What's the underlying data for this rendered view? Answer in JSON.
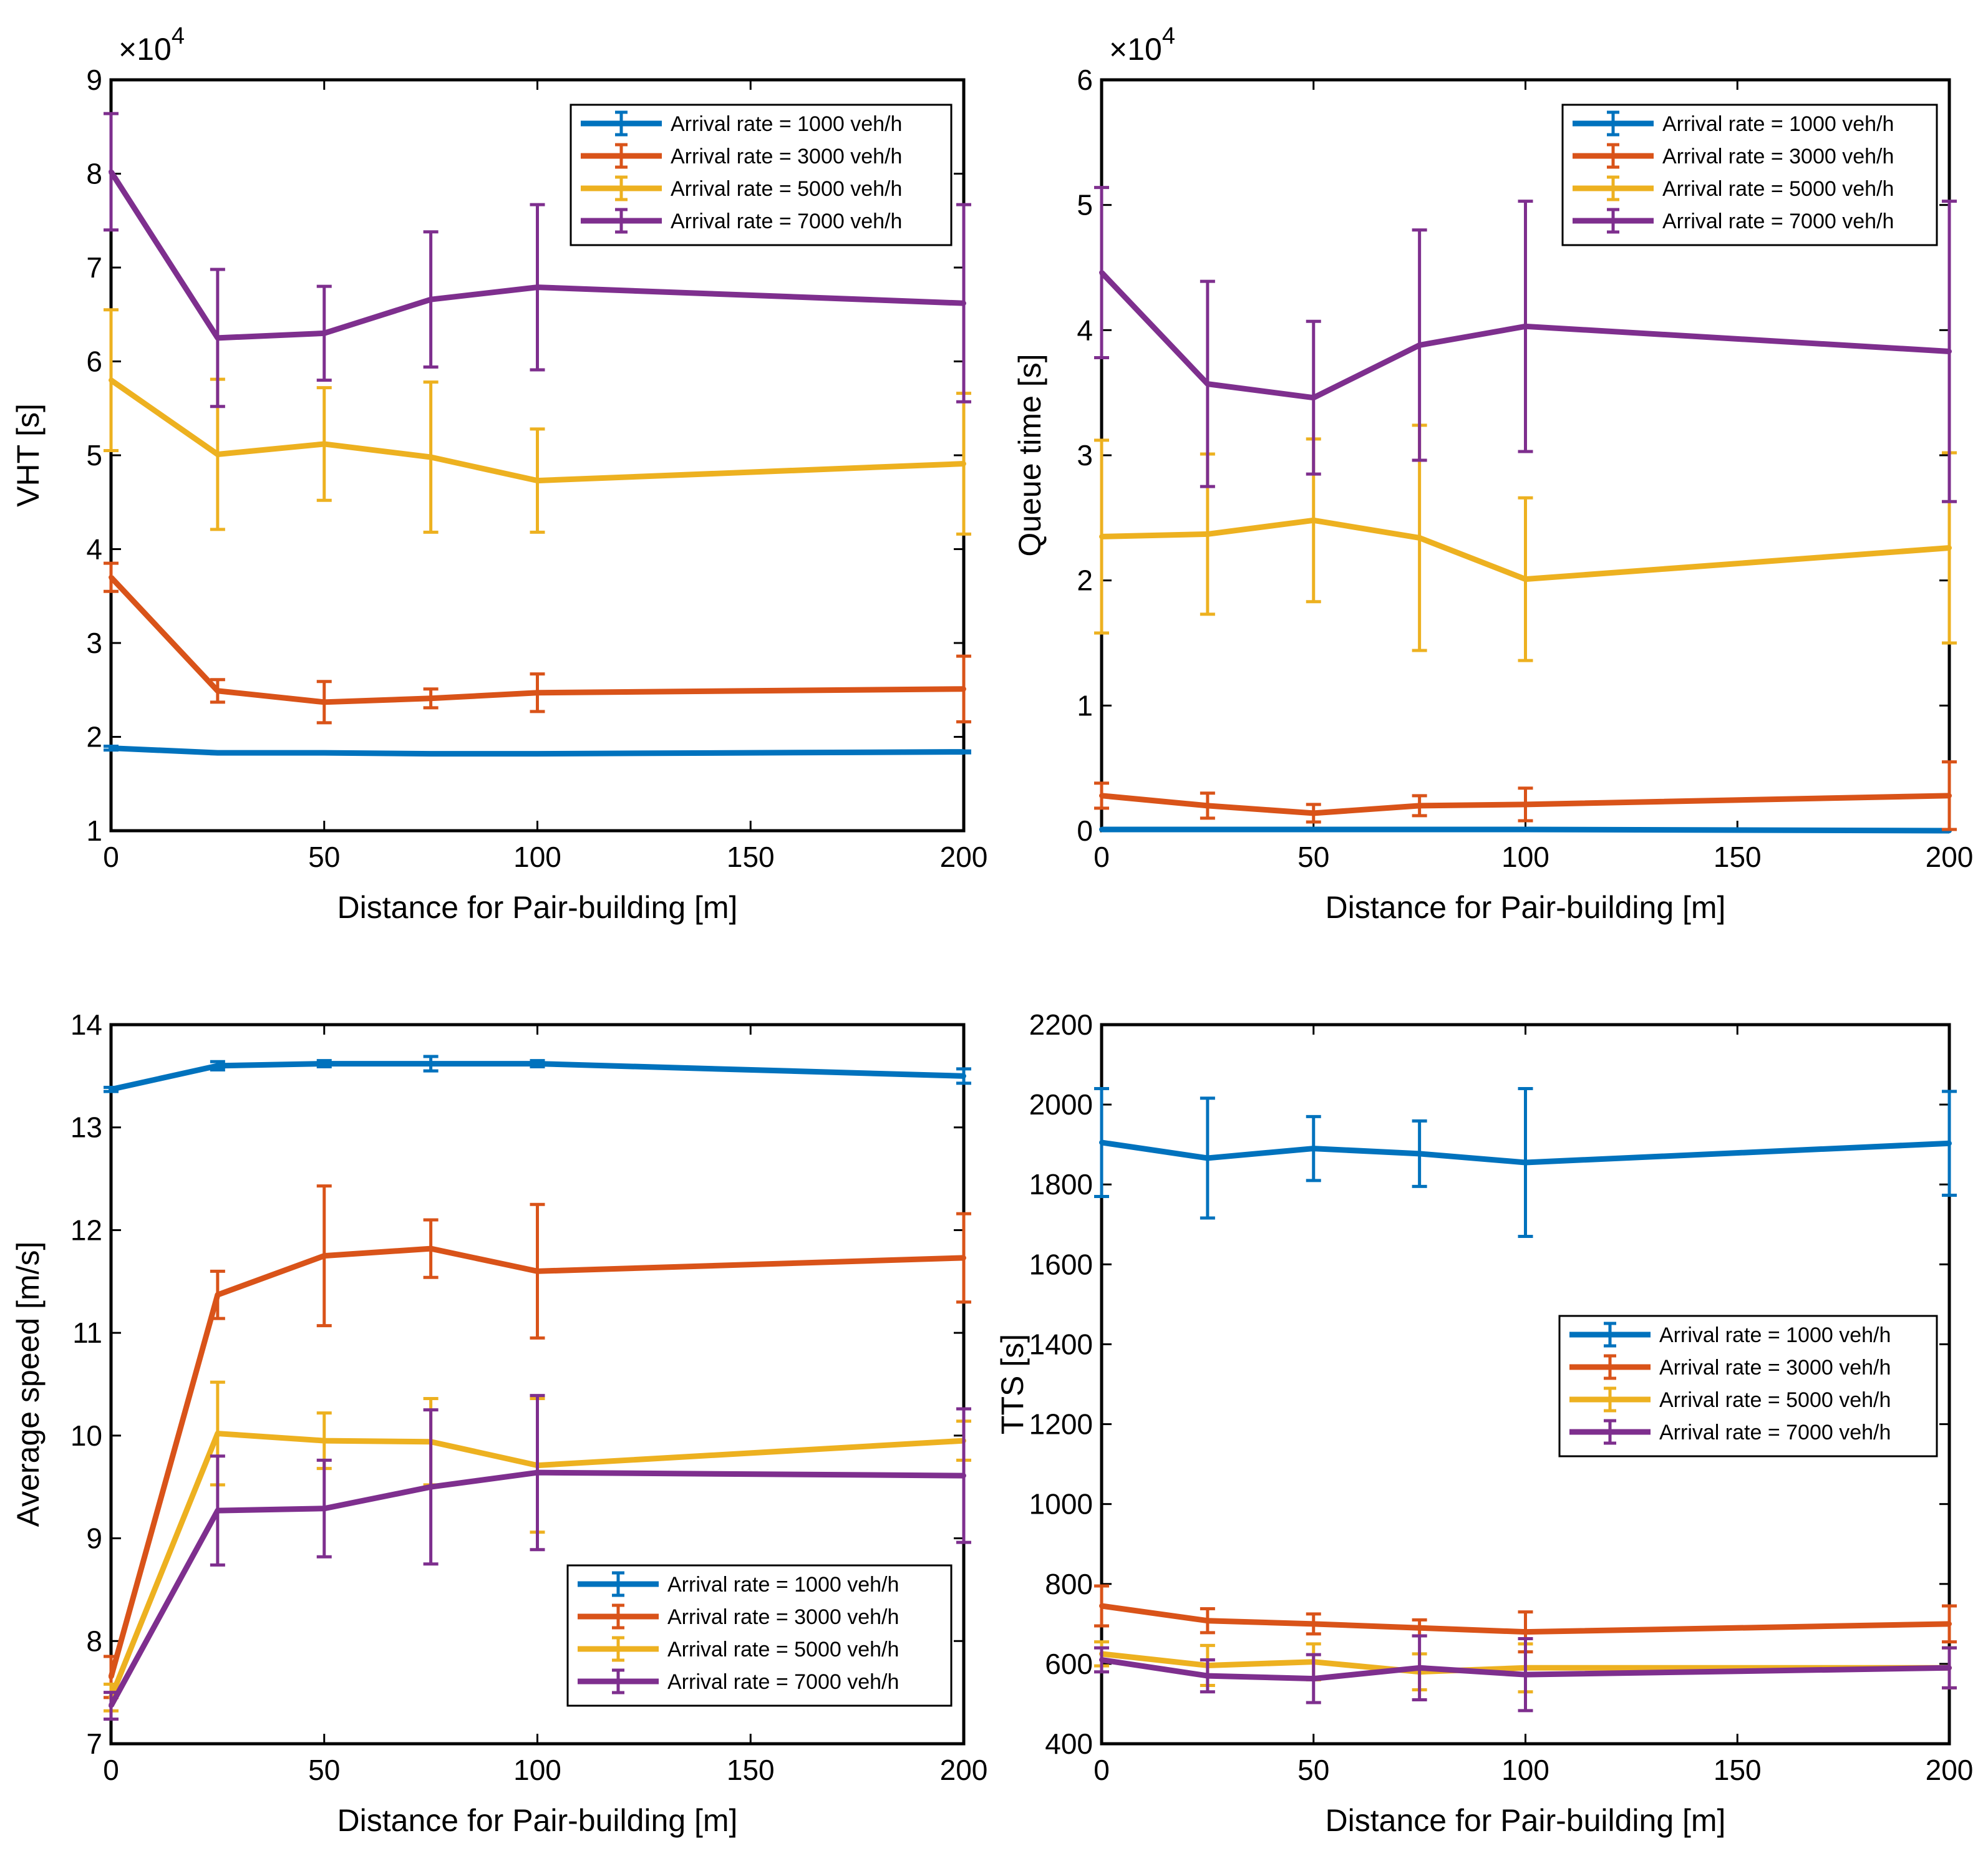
{
  "colors": {
    "s1000": "#0072BD",
    "s3000": "#D95319",
    "s5000": "#EDB120",
    "s7000": "#7E2F8E"
  },
  "legend_labels": [
    "Arrival rate = 1000 veh/h",
    "Arrival rate = 3000 veh/h",
    "Arrival rate = 5000 veh/h",
    "Arrival rate = 7000 veh/h"
  ],
  "chart_data": [
    {
      "id": "vht",
      "type": "line",
      "title": "",
      "xlabel": "Distance for Pair-building [m]",
      "ylabel": "VHT [s]",
      "exponent_label": "×10",
      "exponent_power": "4",
      "x": [
        0,
        25,
        50,
        75,
        100,
        200
      ],
      "xlim": [
        0,
        200
      ],
      "ylim": [
        1,
        9
      ],
      "xticks": [
        "0",
        "50",
        "100",
        "150",
        "200"
      ],
      "xtick_values": [
        0,
        50,
        100,
        150,
        200
      ],
      "yticks": [
        "1",
        "2",
        "3",
        "4",
        "5",
        "6",
        "7",
        "8",
        "9"
      ],
      "ytick_values": [
        1,
        2,
        3,
        4,
        5,
        6,
        7,
        8,
        9
      ],
      "legend_position": "top-right",
      "series": [
        {
          "name": "Arrival rate = 1000 veh/h",
          "color_key": "s1000",
          "values": [
            1.88,
            1.83,
            1.83,
            1.82,
            1.82,
            1.84
          ],
          "errors": [
            0.02,
            0.01,
            0.01,
            0.01,
            0.01,
            0.01
          ]
        },
        {
          "name": "Arrival rate = 3000 veh/h",
          "color_key": "s3000",
          "values": [
            3.7,
            2.49,
            2.37,
            2.41,
            2.47,
            2.51
          ],
          "errors": [
            0.15,
            0.12,
            0.22,
            0.1,
            0.2,
            0.35
          ]
        },
        {
          "name": "Arrival rate = 5000 veh/h",
          "color_key": "s5000",
          "values": [
            5.8,
            5.01,
            5.12,
            4.98,
            4.73,
            4.91
          ],
          "errors": [
            0.75,
            0.8,
            0.6,
            0.8,
            0.55,
            0.75
          ]
        },
        {
          "name": "Arrival rate = 7000 veh/h",
          "color_key": "s7000",
          "values": [
            8.02,
            6.25,
            6.3,
            6.66,
            6.79,
            6.62
          ],
          "errors": [
            0.62,
            0.73,
            0.5,
            0.72,
            0.88,
            1.05
          ]
        }
      ]
    },
    {
      "id": "queue",
      "type": "line",
      "title": "",
      "xlabel": "Distance for Pair-building [m]",
      "ylabel": "Queue time [s]",
      "exponent_label": "×10",
      "exponent_power": "4",
      "x": [
        0,
        25,
        50,
        75,
        100,
        200
      ],
      "xlim": [
        0,
        200
      ],
      "ylim": [
        0,
        6
      ],
      "xticks": [
        "0",
        "50",
        "100",
        "150",
        "200"
      ],
      "xtick_values": [
        0,
        50,
        100,
        150,
        200
      ],
      "yticks": [
        "0",
        "1",
        "2",
        "3",
        "4",
        "5",
        "6"
      ],
      "ytick_values": [
        0,
        1,
        2,
        3,
        4,
        5,
        6
      ],
      "legend_position": "top-right",
      "series": [
        {
          "name": "Arrival rate = 1000 veh/h",
          "color_key": "s1000",
          "values": [
            0.01,
            0.01,
            0.01,
            0.01,
            0.01,
            0.0
          ],
          "errors": [
            0.0,
            0.0,
            0.0,
            0.0,
            0.0,
            0.0
          ]
        },
        {
          "name": "Arrival rate = 3000 veh/h",
          "color_key": "s3000",
          "values": [
            0.28,
            0.2,
            0.14,
            0.2,
            0.21,
            0.28
          ],
          "errors": [
            0.1,
            0.1,
            0.07,
            0.08,
            0.13,
            0.27
          ]
        },
        {
          "name": "Arrival rate = 5000 veh/h",
          "color_key": "s5000",
          "values": [
            2.35,
            2.37,
            2.48,
            2.34,
            2.01,
            2.26
          ],
          "errors": [
            0.77,
            0.64,
            0.65,
            0.9,
            0.65,
            0.76
          ]
        },
        {
          "name": "Arrival rate = 7000 veh/h",
          "color_key": "s7000",
          "values": [
            4.46,
            3.57,
            3.46,
            3.88,
            4.03,
            3.83
          ],
          "errors": [
            0.68,
            0.82,
            0.61,
            0.92,
            1.0,
            1.2
          ]
        }
      ]
    },
    {
      "id": "speed",
      "type": "line",
      "title": "",
      "xlabel": "Distance for Pair-building [m]",
      "ylabel": "Average speed [m/s]",
      "x": [
        0,
        25,
        50,
        75,
        100,
        200
      ],
      "xlim": [
        0,
        200
      ],
      "ylim": [
        7,
        14
      ],
      "xticks": [
        "0",
        "50",
        "100",
        "150",
        "200"
      ],
      "xtick_values": [
        0,
        50,
        100,
        150,
        200
      ],
      "yticks": [
        "7",
        "8",
        "9",
        "10",
        "11",
        "12",
        "13",
        "14"
      ],
      "ytick_values": [
        7,
        8,
        9,
        10,
        11,
        12,
        13,
        14
      ],
      "legend_position": "bottom-right",
      "series": [
        {
          "name": "Arrival rate = 1000 veh/h",
          "color_key": "s1000",
          "values": [
            13.37,
            13.6,
            13.62,
            13.62,
            13.62,
            13.5
          ],
          "errors": [
            0.02,
            0.04,
            0.03,
            0.07,
            0.03,
            0.07
          ]
        },
        {
          "name": "Arrival rate = 3000 veh/h",
          "color_key": "s3000",
          "values": [
            7.65,
            11.37,
            11.75,
            11.82,
            11.6,
            11.73
          ],
          "errors": [
            0.2,
            0.23,
            0.68,
            0.28,
            0.65,
            0.43
          ]
        },
        {
          "name": "Arrival rate = 5000 veh/h",
          "color_key": "s5000",
          "values": [
            7.45,
            10.02,
            9.95,
            9.94,
            9.71,
            9.95
          ],
          "errors": [
            0.13,
            0.5,
            0.27,
            0.42,
            0.65,
            0.19
          ]
        },
        {
          "name": "Arrival rate = 7000 veh/h",
          "color_key": "s7000",
          "values": [
            7.37,
            9.27,
            9.29,
            9.5,
            9.64,
            9.61
          ],
          "errors": [
            0.13,
            0.53,
            0.47,
            0.75,
            0.75,
            0.65
          ]
        }
      ]
    },
    {
      "id": "tts",
      "type": "line",
      "title": "",
      "xlabel": "Distance for Pair-building [m]",
      "ylabel": "TTS [s]",
      "x": [
        0,
        25,
        50,
        75,
        100,
        200
      ],
      "xlim": [
        0,
        200
      ],
      "ylim": [
        400,
        2200
      ],
      "xticks": [
        "0",
        "50",
        "100",
        "150",
        "200"
      ],
      "xtick_values": [
        0,
        50,
        100,
        150,
        200
      ],
      "yticks": [
        "400",
        "600",
        "800",
        "1000",
        "1200",
        "1400",
        "1600",
        "1800",
        "2000",
        "2200"
      ],
      "ytick_values": [
        400,
        600,
        800,
        1000,
        1200,
        1400,
        1600,
        1800,
        2000,
        2200
      ],
      "legend_position": "middle-right",
      "series": [
        {
          "name": "Arrival rate = 1000 veh/h",
          "color_key": "s1000",
          "values": [
            1905,
            1866,
            1890,
            1877,
            1855,
            1903
          ],
          "errors": [
            135,
            150,
            80,
            82,
            185,
            130
          ]
        },
        {
          "name": "Arrival rate = 3000 veh/h",
          "color_key": "s3000",
          "values": [
            745,
            708,
            700,
            690,
            680,
            700
          ],
          "errors": [
            50,
            30,
            25,
            20,
            50,
            45
          ]
        },
        {
          "name": "Arrival rate = 5000 veh/h",
          "color_key": "s5000",
          "values": [
            625,
            596,
            605,
            580,
            590,
            590
          ],
          "errors": [
            30,
            50,
            45,
            45,
            60,
            50
          ]
        },
        {
          "name": "Arrival rate = 7000 veh/h",
          "color_key": "s7000",
          "values": [
            610,
            570,
            563,
            590,
            573,
            590
          ],
          "errors": [
            30,
            40,
            60,
            80,
            90,
            50
          ]
        }
      ]
    }
  ]
}
